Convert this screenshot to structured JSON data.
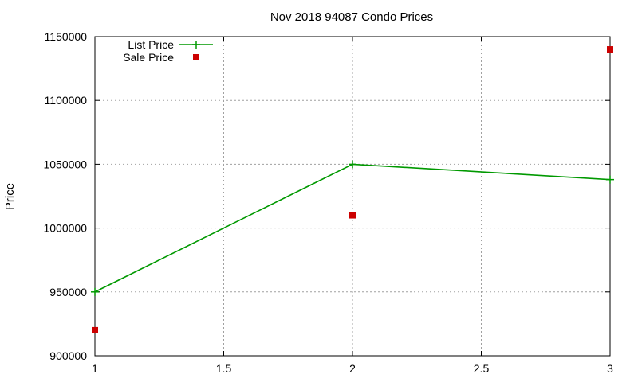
{
  "chart_data": {
    "type": "line",
    "title": "Nov 2018 94087 Condo Prices",
    "xlabel": "",
    "ylabel": "Price",
    "xlim": [
      1,
      3
    ],
    "ylim": [
      900000,
      1150000
    ],
    "x_ticks": [
      1,
      1.5,
      2,
      2.5,
      3
    ],
    "y_ticks": [
      900000,
      950000,
      1000000,
      1050000,
      1100000,
      1150000
    ],
    "x_tick_labels": [
      "1",
      "1.5",
      "2",
      "2.5",
      "3"
    ],
    "y_tick_labels": [
      "900000",
      "950000",
      "1000000",
      "1050000",
      "1100000",
      "1150000"
    ],
    "grid": true,
    "legend_position": "top-left",
    "series": [
      {
        "name": "List Price",
        "style": "linespoints",
        "color": "#009900",
        "x": [
          1,
          2,
          3
        ],
        "y": [
          950000,
          1050000,
          1038000
        ]
      },
      {
        "name": "Sale Price",
        "style": "points",
        "color": "#cc0000",
        "x": [
          1,
          2,
          3
        ],
        "y": [
          920000,
          1010000,
          1140000
        ]
      }
    ]
  }
}
